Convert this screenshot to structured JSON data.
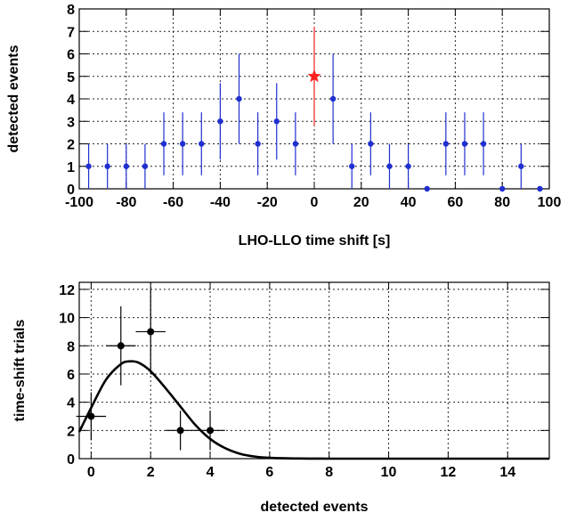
{
  "chart_data": [
    {
      "type": "scatter",
      "xlabel": "LHO-LLO time shift [s]",
      "ylabel": "detected events",
      "xlim": [
        -100,
        100
      ],
      "ylim": [
        0,
        8
      ],
      "x_ticks": [
        -100,
        -80,
        -60,
        -40,
        -20,
        0,
        20,
        40,
        60,
        80,
        100
      ],
      "y_ticks": [
        0,
        1,
        2,
        3,
        4,
        5,
        6,
        7,
        8
      ],
      "grid": true,
      "series": [
        {
          "marker": "circle",
          "color": "#1f2fd0",
          "x": [
            -96,
            -88,
            -80,
            -72,
            -64,
            -56,
            -48,
            -40,
            -32,
            -24,
            -16,
            -8,
            8,
            16,
            24,
            32,
            40,
            48,
            56,
            64,
            72,
            80,
            88,
            96
          ],
          "y": [
            1,
            1,
            1,
            1,
            2,
            2,
            2,
            3,
            4,
            2,
            3,
            2,
            4,
            1,
            2,
            1,
            1,
            0,
            2,
            2,
            2,
            0,
            1,
            0
          ],
          "y_err_low": [
            1,
            1,
            1,
            1,
            1.4,
            1.4,
            1.4,
            1.7,
            2,
            1.4,
            1.7,
            1.4,
            2,
            1,
            1.4,
            1,
            1,
            0,
            1.4,
            1.4,
            1.4,
            0,
            1,
            0
          ],
          "y_err_high": [
            1,
            1,
            1,
            1,
            1.4,
            1.4,
            1.4,
            1.7,
            2,
            1.4,
            1.7,
            1.4,
            2,
            1,
            1.4,
            1,
            1,
            0,
            1.4,
            1.4,
            1.4,
            0,
            1,
            0
          ]
        },
        {
          "marker": "star",
          "color": "#ff2020",
          "x": [
            0
          ],
          "y": [
            5
          ],
          "y_err_low": [
            2.2
          ],
          "y_err_high": [
            2.2
          ]
        }
      ]
    },
    {
      "type": "scatter",
      "xlabel": "detected events",
      "ylabel": "time-shift trials",
      "xlim": [
        -0.4,
        15.4
      ],
      "ylim": [
        0,
        12.5
      ],
      "x_ticks": [
        0,
        2,
        4,
        6,
        8,
        10,
        12,
        14
      ],
      "y_ticks": [
        0,
        2,
        4,
        6,
        8,
        10,
        12
      ],
      "grid": true,
      "series": [
        {
          "marker": "circle",
          "color": "#000000",
          "x": [
            0,
            1,
            2,
            3,
            4
          ],
          "y": [
            3,
            8,
            9,
            2,
            2
          ],
          "x_err": [
            0.5,
            0.5,
            0.5,
            0.5,
            0.5
          ],
          "y_err": [
            1.7,
            2.8,
            3,
            1.4,
            1.4
          ]
        },
        {
          "type": "line",
          "style": "poisson-fit",
          "color": "#000000",
          "x": [
            -0.4,
            0,
            0.5,
            1,
            1.3,
            1.6,
            2,
            2.5,
            3,
            3.5,
            4,
            4.5,
            5,
            5.5,
            6,
            7,
            8,
            10,
            12,
            15.4
          ],
          "y": [
            1.9,
            3.6,
            5.6,
            6.7,
            6.9,
            6.8,
            6.2,
            5.0,
            3.7,
            2.4,
            1.4,
            0.75,
            0.35,
            0.15,
            0.06,
            0.01,
            0.0,
            0.0,
            0.0,
            0.0
          ]
        }
      ]
    }
  ]
}
